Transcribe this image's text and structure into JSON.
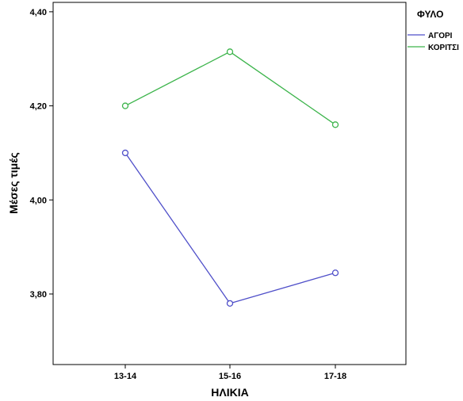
{
  "chart_data": {
    "type": "line",
    "title": "",
    "xlabel": "ΗΛΙΚΙΑ",
    "ylabel": "Μέσες τιμές",
    "categories": [
      "13-14",
      "15-16",
      "17-18"
    ],
    "ylim": [
      3.65,
      4.42
    ],
    "yticks": [
      "3,80",
      "4,00",
      "4,20",
      "4,40"
    ],
    "ytick_values": [
      3.8,
      4.0,
      4.2,
      4.4
    ],
    "grid": false,
    "legend": {
      "title": "ΦΥΛΟ",
      "placement": "right"
    },
    "series": [
      {
        "name": "ΑΓΟΡΙ",
        "color": "#4f4fc9",
        "values": [
          4.1,
          3.78,
          3.845
        ]
      },
      {
        "name": "ΚΟΡΙΤΣΙ",
        "color": "#3cb44b",
        "values": [
          4.2,
          4.315,
          4.16
        ]
      }
    ]
  }
}
